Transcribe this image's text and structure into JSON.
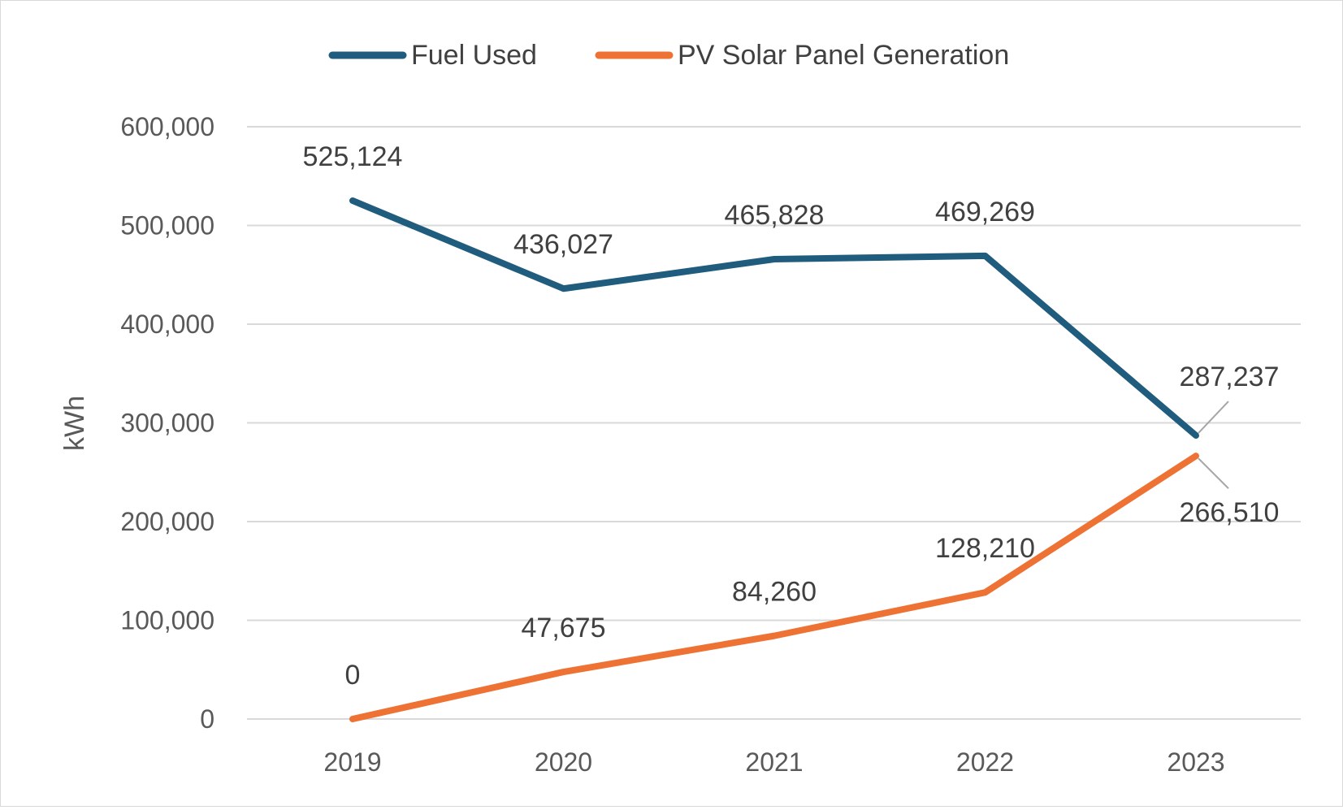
{
  "chart_data": {
    "type": "line",
    "title": "",
    "xlabel": "",
    "ylabel": "kWh",
    "categories": [
      "2019",
      "2020",
      "2021",
      "2022",
      "2023"
    ],
    "ylim": [
      0,
      600000
    ],
    "yticks": [
      0,
      100000,
      200000,
      300000,
      400000,
      500000,
      600000
    ],
    "ytick_labels": [
      "0",
      "100,000",
      "200,000",
      "300,000",
      "400,000",
      "500,000",
      "600,000"
    ],
    "grid": true,
    "legend_position": "top-center",
    "series": [
      {
        "name": "Fuel Used",
        "color": "#1f5c7d",
        "values": [
          525124,
          436027,
          465828,
          469269,
          287237
        ],
        "labels": [
          "525,124",
          "436,027",
          "465,828",
          "469,269",
          "287,237"
        ]
      },
      {
        "name": "PV Solar Panel Generation",
        "color": "#ed7234",
        "values": [
          0,
          47675,
          84260,
          128210,
          266510
        ],
        "labels": [
          "0",
          "47,675",
          "84,260",
          "128,210",
          "266,510"
        ]
      }
    ]
  }
}
